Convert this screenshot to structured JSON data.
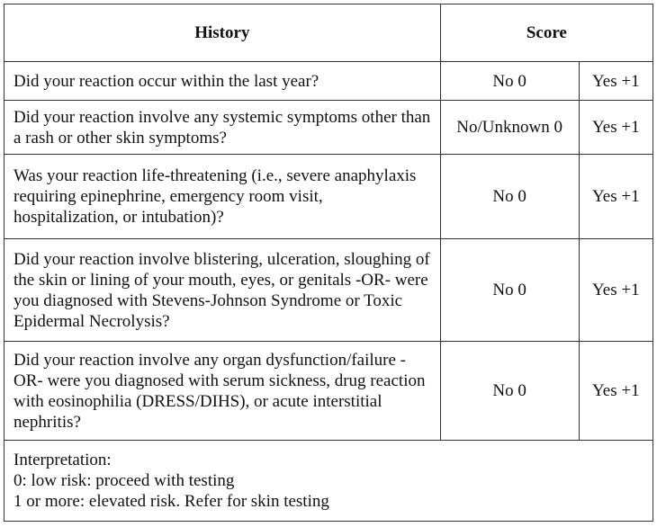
{
  "table": {
    "header": [
      "History",
      "Score"
    ],
    "rows": [
      [
        "Did your reaction occur within the last year?",
        "No 0",
        "Yes +1"
      ],
      [
        "Did your reaction involve any systemic symptoms other than a rash or other skin symptoms?",
        "No/Unknown 0",
        "Yes +1"
      ],
      [
        "Was your reaction life-threatening (i.e., severe anaphylaxis requiring epinephrine, emergency room visit, hospitalization, or intubation)?",
        "No 0",
        "Yes +1"
      ],
      [
        "Did your reaction involve blistering, ulceration, sloughing of the skin or lining of your mouth, eyes, or genitals -OR- were you diagnosed with Stevens-Johnson Syndrome or Toxic Epidermal Necrolysis?",
        "No 0",
        "Yes +1"
      ],
      [
        "Did your reaction involve any organ dysfunction/failure -OR- were you diagnosed with serum sickness, drug reaction with eosinophilia (DRESS/DIHS), or acute interstitial nephritis?",
        "No 0",
        "Yes +1"
      ]
    ],
    "interpretation": [
      "Interpretation:",
      "0: low risk: proceed with testing",
      "1 or more: elevated risk. Refer for skin testing"
    ]
  }
}
